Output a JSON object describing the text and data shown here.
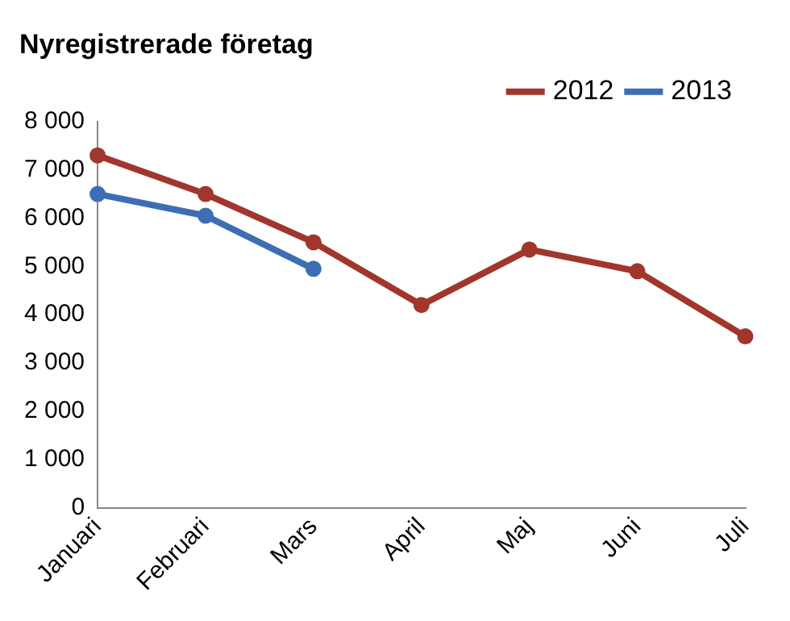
{
  "chart_data": {
    "type": "line",
    "title": "Nyregistrerade företag",
    "categories": [
      "Januari",
      "Februari",
      "Mars",
      "April",
      "Maj",
      "Juni",
      "Juli"
    ],
    "series": [
      {
        "name": "2012",
        "color": "#a0362c",
        "values": [
          7300,
          6500,
          5500,
          4200,
          5350,
          4900,
          3550
        ]
      },
      {
        "name": "2013",
        "color": "#3d6eb4",
        "values": [
          6500,
          6050,
          4950,
          null,
          null,
          null,
          null
        ]
      }
    ],
    "ylim": [
      0,
      8000
    ],
    "yticks": [
      {
        "value": 0,
        "label": "0"
      },
      {
        "value": 1000,
        "label": "1 000"
      },
      {
        "value": 2000,
        "label": "2 000"
      },
      {
        "value": 3000,
        "label": "3 000"
      },
      {
        "value": 4000,
        "label": "4 000"
      },
      {
        "value": 5000,
        "label": "5 000"
      },
      {
        "value": 6000,
        "label": "6 000"
      },
      {
        "value": 7000,
        "label": "7 000"
      },
      {
        "value": 8000,
        "label": "8 000"
      }
    ],
    "grid": false,
    "legend": "top right",
    "marker": "circle",
    "line_style": "solid"
  }
}
